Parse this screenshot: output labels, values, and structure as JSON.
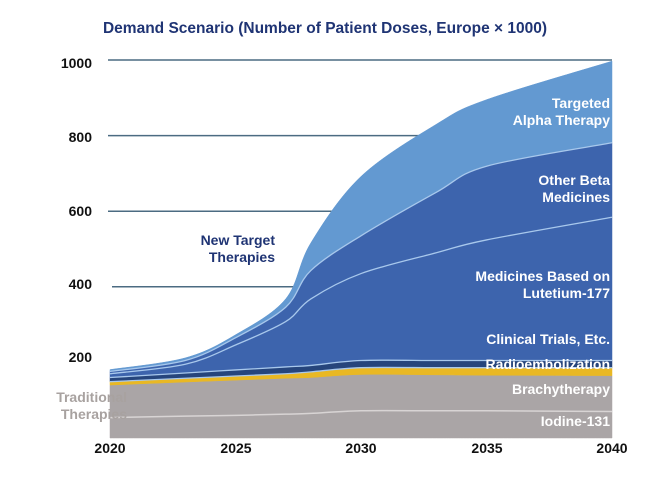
{
  "chart_data": {
    "type": "area",
    "stacked": true,
    "title": "Demand Scenario (Number of Patient Doses, Europe × 1000)",
    "xlabel": "",
    "ylabel": "",
    "x": [
      2020,
      2023,
      2025,
      2027,
      2028,
      2030,
      2033,
      2035,
      2040
    ],
    "xlim": [
      2020,
      2040
    ],
    "ylim": [
      0,
      1000
    ],
    "x_ticks": [
      "2020",
      "2025",
      "2030",
      "2035",
      "2040"
    ],
    "y_ticks": [
      "200",
      "400",
      "600",
      "800",
      "1000"
    ],
    "grid": "horizontal lines at 400, 600, 800, 1000 (behind areas)",
    "series": [
      {
        "name": "Iodine-131",
        "color": "#aaa5a6",
        "values": [
          54,
          58,
          60,
          63,
          65,
          72,
          72,
          72,
          70
        ]
      },
      {
        "name": "Brachytherapy",
        "color": "#aaa5a6",
        "values": [
          86,
          90,
          93,
          95,
          95,
          96,
          95,
          94,
          95
        ]
      },
      {
        "name": "Radioembolization",
        "color": "#e9b824",
        "values": [
          9,
          10,
          11,
          12,
          15,
          18,
          19,
          20,
          21
        ]
      },
      {
        "name": "Clinical Trials, Etc.",
        "color": "#26457c",
        "values": [
          11,
          14,
          16,
          18,
          17,
          19,
          19,
          19,
          19
        ]
      },
      {
        "name": "Medicines Based on Lutetium-177",
        "color": "#3d64ad",
        "values": [
          10,
          23,
          66,
          120,
          176,
          230,
          285,
          319,
          379
        ]
      },
      {
        "name": "Other Beta Medicines",
        "color": "#3d64ad",
        "values": [
          6,
          10,
          19,
          38,
          75,
          100,
          160,
          195,
          197
        ]
      },
      {
        "name": "Targeted Alpha Therapy",
        "color": "#6399d1",
        "values": [
          5,
          7,
          8,
          22,
          73,
          157,
          180,
          176,
          216
        ]
      }
    ],
    "group_labels": {
      "new": "New Target Therapies",
      "traditional": "Traditional Therapies"
    },
    "labels": {
      "tat": [
        "Targeted",
        "Alpha Therapy"
      ],
      "beta": [
        "Other Beta",
        "Medicines"
      ],
      "lu": [
        "Medicines Based on",
        "Lutetium-177"
      ],
      "ct": "Clinical Trials, Etc.",
      "radio": "Radioembolization",
      "brachy": "Brachytherapy",
      "iodine": "Iodine-131",
      "new": [
        "New Target",
        "Therapies"
      ],
      "trad": [
        "Traditional",
        "Therapies"
      ]
    },
    "divider_color": "#a8c8ec",
    "grid_color": "#4b6b82"
  }
}
